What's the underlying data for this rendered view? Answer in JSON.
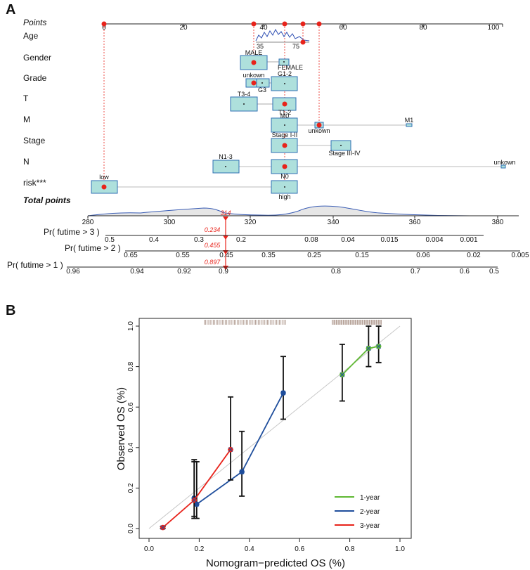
{
  "chart_data": [
    {
      "type": "nomogram",
      "panel": "A",
      "rows": [
        {
          "label": "Points",
          "italic": true,
          "ticks": [
            "0",
            "20",
            "40",
            "60",
            "80",
            "100"
          ]
        },
        {
          "label": "Age",
          "tick_labels": [
            "35",
            "75"
          ]
        },
        {
          "label": "Gender",
          "categories": [
            "MALE",
            "FEMALE"
          ]
        },
        {
          "label": "Grade",
          "categories": [
            "unkown",
            "G1-2",
            "G3"
          ]
        },
        {
          "label": "T",
          "categories": [
            "T3-4",
            "T1-2"
          ]
        },
        {
          "label": "M",
          "categories": [
            "M0",
            "unkown",
            "M1"
          ]
        },
        {
          "label": "Stage",
          "categories": [
            "Stage I-II",
            "Stage III-IV"
          ]
        },
        {
          "label": "N",
          "categories": [
            "N1-3",
            "N0",
            "unkown"
          ]
        },
        {
          "label": "risk***",
          "categories": [
            "low",
            "high"
          ]
        },
        {
          "label": "Total points",
          "bold_italic": true,
          "ticks": [
            "280",
            "300",
            "320",
            "340",
            "360",
            "380"
          ],
          "marker_value": "314"
        }
      ],
      "probability_rows": [
        {
          "label": "Pr( futime > 3 )",
          "ticks": [
            "0.5",
            "0.4",
            "0.3",
            "0.2",
            "0.08",
            "0.04",
            "0.015",
            "0.004",
            "0.001"
          ],
          "value": "0.234"
        },
        {
          "label": "Pr( futime > 2 )",
          "ticks": [
            "0.65",
            "0.55",
            "0.45",
            "0.35",
            "0.25",
            "0.15",
            "0.06",
            "0.02",
            "0.005"
          ],
          "value": "0.455"
        },
        {
          "label": "Pr( futime > 1 )",
          "ticks": [
            "0.96",
            "0.94",
            "0.92",
            "0.9",
            "0.8",
            "0.7",
            "0.6",
            "0.5"
          ],
          "value": "0.897"
        }
      ]
    },
    {
      "type": "line",
      "panel": "B",
      "xlabel": "Nomogram−predicted OS (%)",
      "ylabel": "Observed OS (%)",
      "xlim": [
        0,
        1
      ],
      "ylim": [
        0,
        1
      ],
      "xticks": [
        "0.0",
        "0.2",
        "0.4",
        "0.6",
        "0.8",
        "1.0"
      ],
      "yticks": [
        "0.0",
        "0.2",
        "0.4",
        "0.6",
        "0.8",
        "1.0"
      ],
      "reference_line": [
        [
          0,
          0
        ],
        [
          1,
          1
        ]
      ],
      "series": [
        {
          "name": "1-year",
          "color": "#5fb832",
          "points": [
            {
              "x": 0.77,
              "y": 0.76,
              "lo": 0.63,
              "hi": 0.91
            },
            {
              "x": 0.875,
              "y": 0.89,
              "lo": 0.8,
              "hi": 1.0
            },
            {
              "x": 0.915,
              "y": 0.9,
              "lo": 0.82,
              "hi": 1.0
            }
          ]
        },
        {
          "name": "2-year",
          "color": "#1f4e9c",
          "points": [
            {
              "x": 0.18,
              "y": 0.15,
              "lo": 0.06,
              "hi": 0.33
            },
            {
              "x": 0.19,
              "y": 0.12,
              "lo": 0.05,
              "hi": 0.33
            },
            {
              "x": 0.37,
              "y": 0.28,
              "lo": 0.16,
              "hi": 0.48
            },
            {
              "x": 0.535,
              "y": 0.67,
              "lo": 0.54,
              "hi": 0.85
            }
          ]
        },
        {
          "name": "3-year",
          "color": "#e8231b",
          "points": [
            {
              "x": 0.055,
              "y": 0.005,
              "lo": 0.0,
              "hi": 0.01
            },
            {
              "x": 0.18,
              "y": 0.14,
              "lo": 0.05,
              "hi": 0.34
            },
            {
              "x": 0.325,
              "y": 0.39,
              "lo": 0.24,
              "hi": 0.65
            }
          ]
        }
      ]
    }
  ]
}
